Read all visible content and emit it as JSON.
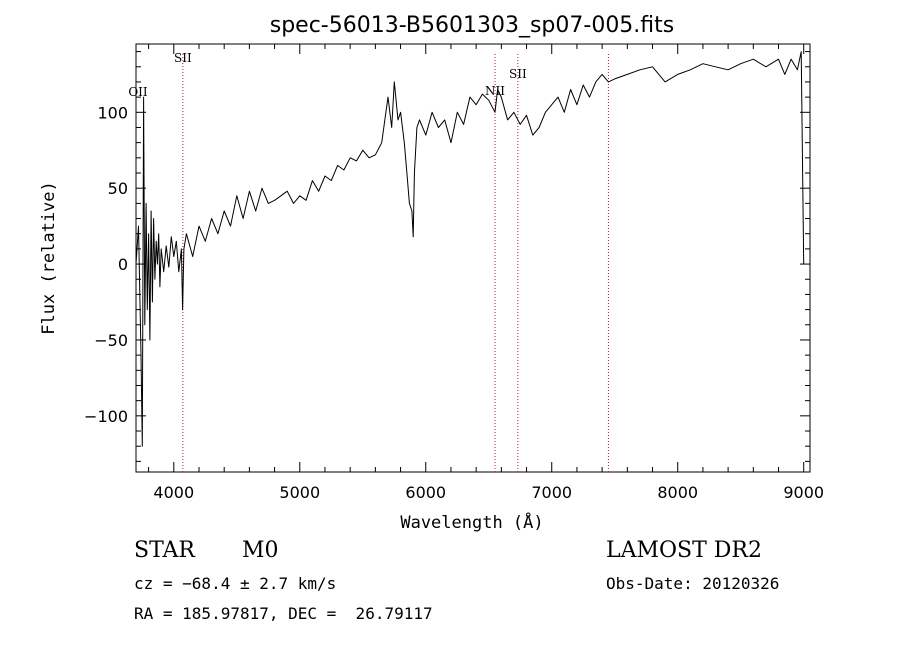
{
  "chart_data": {
    "type": "line",
    "title": "spec-56013-B5601303_sp07-005.fits",
    "xlabel": "Wavelength (Å)",
    "ylabel": "Flux (relative)",
    "xlim": [
      3700,
      9050
    ],
    "ylim": [
      -137,
      145
    ],
    "x_ticks": [
      4000,
      5000,
      6000,
      7000,
      8000,
      9000
    ],
    "y_ticks": [
      -100,
      -50,
      0,
      50,
      100
    ],
    "grid": false,
    "series": [
      {
        "color": "#000000",
        "x": [
          3700,
          3720,
          3740,
          3750,
          3760,
          3770,
          3780,
          3790,
          3800,
          3810,
          3820,
          3830,
          3840,
          3850,
          3860,
          3870,
          3880,
          3890,
          3900,
          3920,
          3940,
          3960,
          3980,
          4000,
          4020,
          4040,
          4060,
          4070,
          4080,
          4100,
          4150,
          4200,
          4250,
          4300,
          4350,
          4400,
          4450,
          4500,
          4550,
          4600,
          4650,
          4700,
          4750,
          4800,
          4850,
          4900,
          4950,
          5000,
          5050,
          5100,
          5150,
          5200,
          5250,
          5300,
          5350,
          5400,
          5450,
          5500,
          5550,
          5600,
          5650,
          5700,
          5730,
          5750,
          5780,
          5800,
          5830,
          5850,
          5870,
          5890,
          5900,
          5910,
          5930,
          5950,
          6000,
          6050,
          6100,
          6150,
          6200,
          6250,
          6300,
          6350,
          6400,
          6450,
          6500,
          6550,
          6570,
          6600,
          6650,
          6700,
          6750,
          6800,
          6850,
          6900,
          6950,
          7000,
          7050,
          7100,
          7150,
          7200,
          7250,
          7300,
          7350,
          7400,
          7450,
          7500,
          7600,
          7700,
          7800,
          7900,
          8000,
          8100,
          8200,
          8300,
          8400,
          8500,
          8600,
          8700,
          8800,
          8850,
          8900,
          8950,
          8980,
          9000
        ],
        "y": [
          0,
          25,
          -60,
          -120,
          110,
          -40,
          40,
          -30,
          20,
          -50,
          35,
          -25,
          30,
          -10,
          15,
          0,
          20,
          -15,
          10,
          -5,
          12,
          -2,
          18,
          5,
          15,
          -5,
          10,
          -30,
          10,
          20,
          5,
          25,
          15,
          30,
          20,
          35,
          25,
          45,
          30,
          48,
          35,
          50,
          40,
          42,
          45,
          48,
          40,
          45,
          42,
          55,
          48,
          58,
          55,
          65,
          62,
          70,
          68,
          75,
          70,
          72,
          80,
          110,
          90,
          120,
          95,
          100,
          80,
          60,
          40,
          35,
          18,
          60,
          90,
          95,
          85,
          100,
          90,
          95,
          80,
          100,
          92,
          110,
          105,
          112,
          108,
          100,
          115,
          110,
          95,
          100,
          92,
          98,
          85,
          90,
          100,
          105,
          110,
          100,
          115,
          105,
          118,
          110,
          120,
          125,
          120,
          122,
          125,
          128,
          130,
          120,
          125,
          128,
          132,
          130,
          128,
          132,
          135,
          130,
          135,
          125,
          135,
          128,
          140,
          0
        ]
      }
    ],
    "line_markers": [
      {
        "x": 4072,
        "label": "SII"
      },
      {
        "x": 6550,
        "label": "NII"
      },
      {
        "x": 6731,
        "label": "SII"
      },
      {
        "x": 7450,
        "label": ""
      }
    ],
    "left_marker_label": "OII"
  },
  "info": {
    "object_class": "STAR",
    "subclass": "M0",
    "cz": "cz = −68.4 ± 2.7 km/s",
    "radec": "RA = 185.97817, DEC =  26.79117",
    "survey": "LAMOST DR2",
    "obs_date": "Obs-Date: 20120326"
  }
}
